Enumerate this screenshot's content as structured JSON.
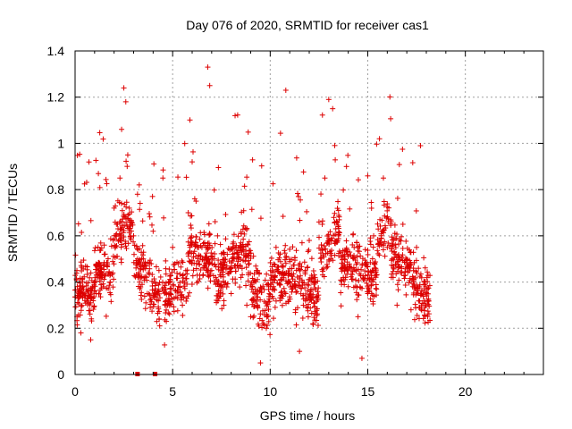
{
  "chart_data": {
    "type": "scatter",
    "title": "Day 076 of 2020, SRMTID for receiver cas1",
    "xlabel": "GPS time / hours",
    "ylabel": "SRMTID / TECUs",
    "xlim": [
      0,
      24
    ],
    "ylim": [
      0,
      1.4
    ],
    "xticks": [
      0,
      5,
      10,
      15,
      20
    ],
    "xtick_labels": [
      "0",
      "5",
      "10",
      "15",
      "20"
    ],
    "yticks": [
      0,
      0.2,
      0.4,
      0.6,
      0.8,
      1,
      1.2,
      1.4
    ],
    "ytick_labels": [
      "0",
      "0.2",
      "0.4",
      "0.6",
      "0.8",
      "1",
      "1.2",
      "1.4"
    ],
    "grid": true,
    "marker": "plus",
    "color": "#dd0000",
    "series": [
      {
        "name": "cas1 SRMTID",
        "x_range_hours": [
          0,
          18.2
        ],
        "sample_points": [
          [
            0.1,
            0.25
          ],
          [
            0.3,
            0.18
          ],
          [
            0.5,
            0.32
          ],
          [
            0.8,
            0.15
          ],
          [
            1.0,
            0.36
          ],
          [
            1.2,
            0.45
          ],
          [
            1.5,
            0.52
          ],
          [
            1.8,
            0.4
          ],
          [
            2.0,
            0.72
          ],
          [
            2.3,
            0.85
          ],
          [
            2.5,
            1.24
          ],
          [
            2.6,
            1.18
          ],
          [
            2.7,
            0.95
          ],
          [
            3.0,
            0.6
          ],
          [
            3.2,
            0.78
          ],
          [
            3.5,
            0.5
          ],
          [
            3.7,
            0.35
          ],
          [
            4.0,
            0.62
          ],
          [
            4.3,
            0.45
          ],
          [
            4.5,
            0.85
          ],
          [
            4.8,
            0.4
          ],
          [
            5.0,
            0.55
          ],
          [
            5.3,
            0.48
          ],
          [
            5.5,
            0.3
          ],
          [
            5.8,
            0.7
          ],
          [
            6.0,
            0.92
          ],
          [
            6.2,
            0.75
          ],
          [
            6.5,
            0.55
          ],
          [
            6.8,
            1.33
          ],
          [
            6.9,
            1.25
          ],
          [
            7.0,
            0.45
          ],
          [
            7.3,
            0.6
          ],
          [
            7.5,
            0.38
          ],
          [
            7.8,
            0.52
          ],
          [
            8.0,
            0.35
          ],
          [
            8.2,
            1.12
          ],
          [
            8.5,
            0.42
          ],
          [
            8.8,
            0.3
          ],
          [
            9.0,
            0.25
          ],
          [
            9.3,
            0.45
          ],
          [
            9.5,
            0.05
          ],
          [
            9.8,
            0.2
          ],
          [
            10.0,
            0.38
          ],
          [
            10.3,
            0.55
          ],
          [
            10.5,
            0.32
          ],
          [
            10.8,
            1.23
          ],
          [
            11.0,
            0.4
          ],
          [
            11.3,
            0.28
          ],
          [
            11.5,
            0.1
          ],
          [
            11.8,
            0.45
          ],
          [
            12.0,
            0.58
          ],
          [
            12.3,
            0.42
          ],
          [
            12.5,
            0.66
          ],
          [
            12.8,
            0.85
          ],
          [
            13.0,
            1.19
          ],
          [
            13.2,
            1.15
          ],
          [
            13.5,
            0.6
          ],
          [
            13.8,
            0.45
          ],
          [
            14.0,
            0.38
          ],
          [
            14.3,
            0.55
          ],
          [
            14.5,
            0.25
          ],
          [
            14.7,
            0.07
          ],
          [
            15.0,
            0.35
          ],
          [
            15.3,
            0.6
          ],
          [
            15.6,
            1.02
          ],
          [
            15.8,
            0.85
          ],
          [
            16.0,
            0.55
          ],
          [
            16.3,
            0.42
          ],
          [
            16.5,
            0.3
          ],
          [
            16.8,
            0.65
          ],
          [
            17.0,
            0.48
          ],
          [
            17.3,
            0.38
          ],
          [
            17.5,
            0.55
          ],
          [
            17.7,
            0.99
          ],
          [
            17.9,
            0.4
          ],
          [
            18.1,
            0.32
          ]
        ],
        "zero_markers_x": [
          3.2,
          4.1
        ]
      }
    ]
  }
}
